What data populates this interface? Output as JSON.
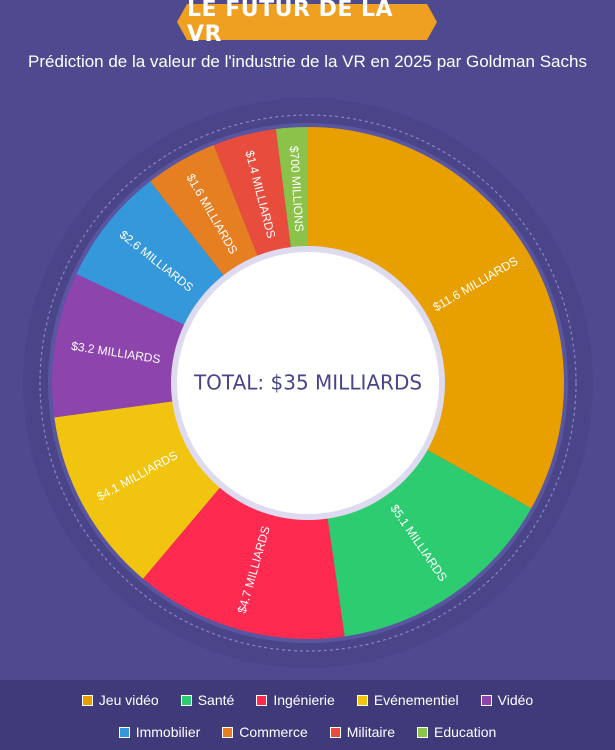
{
  "header": {
    "title": "LE FUTUR DE LA VR",
    "subtitle": "Prédiction de la valeur de l'industrie de la VR en 2025 par Goldman Sachs"
  },
  "chart_data": {
    "type": "pie",
    "variant": "donut",
    "center_label": "TOTAL: $35  MILLIARDS",
    "slices": [
      {
        "name": "Jeu vidéo",
        "value": 11.6,
        "label": "$11.6 MILLIARDS",
        "color": "#e8a000"
      },
      {
        "name": "Santé",
        "value": 5.1,
        "label": "$5.1 MILLIARDS",
        "color": "#2ecc71"
      },
      {
        "name": "Ingénierie",
        "value": 4.7,
        "label": "$4.7 MILLIARDS",
        "color": "#ff2a4f"
      },
      {
        "name": "Evénementiel",
        "value": 4.1,
        "label": "$4.1 MILLIARDS",
        "color": "#f1c40f"
      },
      {
        "name": "Vidéo",
        "value": 3.2,
        "label": "$3.2 MILLIARDS",
        "color": "#8e44ad"
      },
      {
        "name": "Immobilier",
        "value": 2.6,
        "label": "$2.6 MILLIARDS",
        "color": "#3498db"
      },
      {
        "name": "Commerce",
        "value": 1.6,
        "label": "$1.6 MILLIARDS",
        "color": "#e67e22"
      },
      {
        "name": "Militaire",
        "value": 1.4,
        "label": "$1.4 MILLIARDS",
        "color": "#e74c3c"
      },
      {
        "name": "Education",
        "value": 0.7,
        "label": "$700 MILLIONS",
        "color": "#8bc34a"
      }
    ],
    "legend_position": "bottom"
  },
  "legend": {
    "row1": [
      "Jeu vidéo",
      "Santé",
      "Ingénierie",
      "Evénementiel",
      "Vidéo"
    ],
    "row2": [
      "Immobilier",
      "Commerce",
      "Militaire",
      "Education"
    ]
  }
}
